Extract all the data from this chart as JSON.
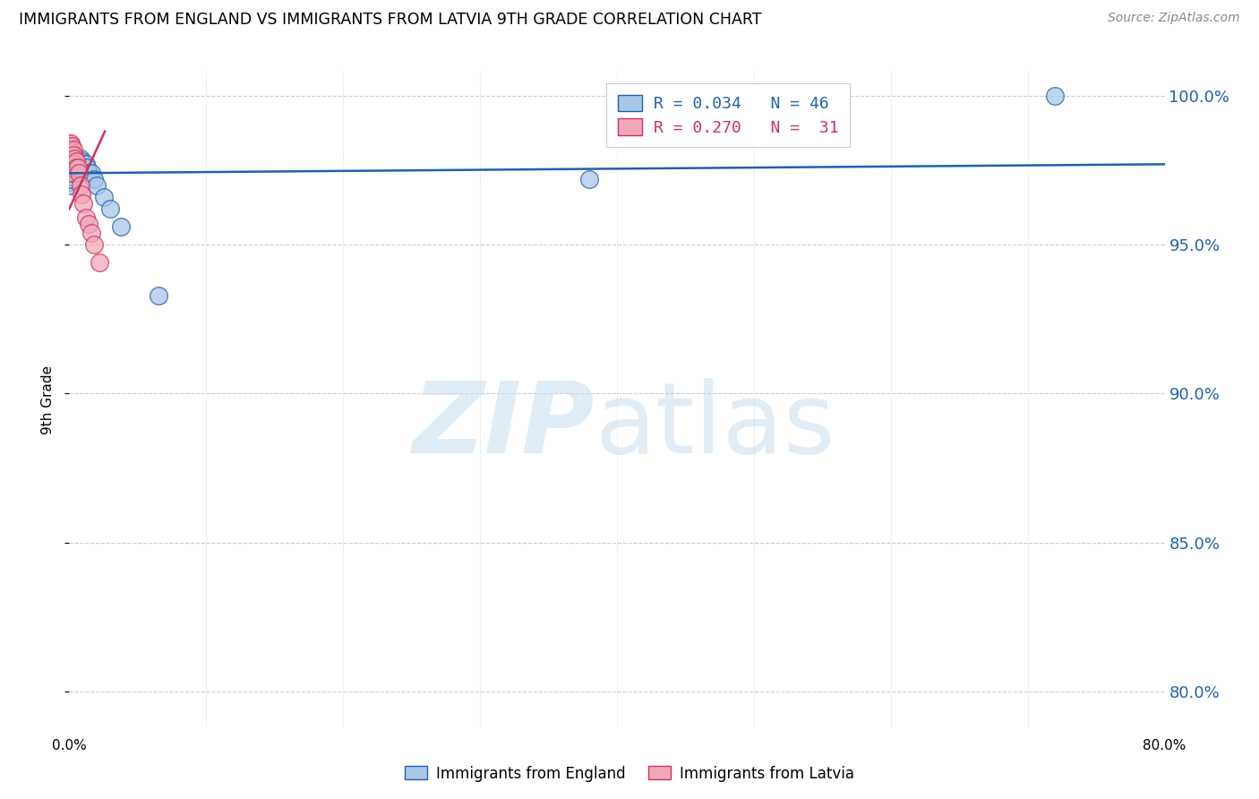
{
  "title": "IMMIGRANTS FROM ENGLAND VS IMMIGRANTS FROM LATVIA 9TH GRADE CORRELATION CHART",
  "source": "Source: ZipAtlas.com",
  "ylabel": "9th Grade",
  "y_ticks_pct": [
    80.0,
    85.0,
    90.0,
    95.0,
    100.0
  ],
  "x_lim": [
    0.0,
    0.8
  ],
  "y_lim": [
    0.788,
    1.008
  ],
  "color_england": "#a8c8e8",
  "color_latvia": "#f0a8b8",
  "line_color_england": "#2060b0",
  "line_color_latvia": "#d03060",
  "legend_england_r": "0.034",
  "legend_england_n": "46",
  "legend_latvia_r": "0.270",
  "legend_latvia_n": "31",
  "eng_line_x0": 0.0,
  "eng_line_x1": 0.8,
  "eng_line_y0": 0.974,
  "eng_line_y1": 0.977,
  "lat_line_x0": 0.0,
  "lat_line_x1": 0.026,
  "lat_line_y0": 0.962,
  "lat_line_y1": 0.988,
  "england_x": [
    0.0,
    0.0,
    0.0,
    0.0,
    0.0,
    0.0,
    0.0,
    0.0,
    0.001,
    0.001,
    0.001,
    0.001,
    0.001,
    0.002,
    0.002,
    0.002,
    0.002,
    0.003,
    0.003,
    0.003,
    0.004,
    0.004,
    0.004,
    0.005,
    0.005,
    0.006,
    0.006,
    0.007,
    0.008,
    0.008,
    0.009,
    0.01,
    0.01,
    0.011,
    0.012,
    0.013,
    0.014,
    0.016,
    0.018,
    0.02,
    0.025,
    0.03,
    0.038,
    0.065,
    0.38,
    0.72
  ],
  "england_y": [
    0.978,
    0.976,
    0.975,
    0.974,
    0.973,
    0.972,
    0.971,
    0.97,
    0.979,
    0.977,
    0.975,
    0.974,
    0.973,
    0.978,
    0.976,
    0.974,
    0.972,
    0.979,
    0.977,
    0.975,
    0.977,
    0.975,
    0.974,
    0.977,
    0.975,
    0.978,
    0.976,
    0.978,
    0.979,
    0.977,
    0.978,
    0.977,
    0.975,
    0.976,
    0.977,
    0.976,
    0.974,
    0.974,
    0.972,
    0.97,
    0.966,
    0.962,
    0.956,
    0.933,
    0.972,
    1.0
  ],
  "latvia_x": [
    0.0,
    0.0,
    0.0,
    0.0,
    0.0,
    0.0,
    0.0,
    0.001,
    0.001,
    0.001,
    0.001,
    0.002,
    0.002,
    0.002,
    0.002,
    0.003,
    0.003,
    0.004,
    0.004,
    0.005,
    0.005,
    0.006,
    0.007,
    0.008,
    0.009,
    0.01,
    0.012,
    0.014,
    0.016,
    0.018,
    0.022
  ],
  "latvia_y": [
    0.984,
    0.982,
    0.98,
    0.979,
    0.977,
    0.976,
    0.974,
    0.984,
    0.982,
    0.98,
    0.978,
    0.983,
    0.981,
    0.979,
    0.977,
    0.982,
    0.98,
    0.979,
    0.977,
    0.978,
    0.976,
    0.976,
    0.974,
    0.97,
    0.967,
    0.964,
    0.959,
    0.957,
    0.954,
    0.95,
    0.944
  ]
}
